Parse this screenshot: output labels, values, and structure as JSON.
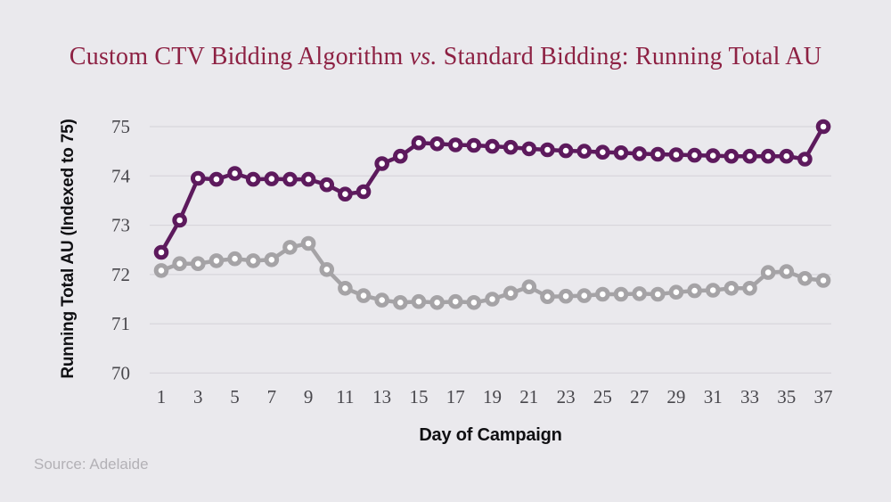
{
  "page": {
    "source_note": "Source: Adelaide",
    "colors": {
      "background": "#eae9ed",
      "gridline": "#d8d6dc",
      "title_text": "#8d2143",
      "tick_text": "#48474c",
      "axis_label_text": "#0f0f12",
      "source_text": "#b3b1b6",
      "marker_fill": "#ffffff"
    }
  },
  "title": {
    "prefix": "Custom CTV Bidding Algorithm ",
    "vs": "vs.",
    "suffix": " Standard Bidding: Running Total AU"
  },
  "chart_data": {
    "type": "line",
    "title": "Custom CTV Bidding Algorithm vs. Standard Bidding: Running Total AU",
    "xlabel": "Day of Campaign",
    "ylabel": "Running Total AU (Indexed to 75)",
    "x": [
      1,
      2,
      3,
      4,
      5,
      6,
      7,
      8,
      9,
      10,
      11,
      12,
      13,
      14,
      15,
      16,
      17,
      18,
      19,
      20,
      21,
      22,
      23,
      24,
      25,
      26,
      27,
      28,
      29,
      30,
      31,
      32,
      33,
      34,
      35,
      36,
      37
    ],
    "x_ticks": [
      1,
      3,
      5,
      7,
      9,
      11,
      13,
      15,
      17,
      19,
      21,
      23,
      25,
      27,
      29,
      31,
      33,
      35,
      37
    ],
    "y_ticks": [
      70,
      71,
      72,
      73,
      74,
      75
    ],
    "ylim": [
      70,
      75
    ],
    "xlim": [
      1,
      37
    ],
    "grid": "horizontal-only",
    "legend_position": "none",
    "marker_style": "open-circle",
    "series": [
      {
        "name": "Custom CTV Bidding Algorithm",
        "color": "#5d1a5d",
        "values": [
          72.45,
          73.1,
          73.95,
          73.93,
          74.05,
          73.93,
          73.94,
          73.93,
          73.93,
          73.82,
          73.63,
          73.68,
          74.25,
          74.4,
          74.67,
          74.65,
          74.63,
          74.62,
          74.6,
          74.58,
          74.55,
          74.53,
          74.51,
          74.5,
          74.48,
          74.47,
          74.45,
          74.44,
          74.43,
          74.42,
          74.41,
          74.4,
          74.4,
          74.4,
          74.4,
          74.34,
          75.0
        ]
      },
      {
        "name": "Standard Bidding",
        "color": "#a5a3a6",
        "values": [
          72.08,
          72.22,
          72.22,
          72.28,
          72.32,
          72.28,
          72.3,
          72.55,
          72.63,
          72.1,
          71.72,
          71.57,
          71.48,
          71.43,
          71.45,
          71.43,
          71.45,
          71.43,
          71.5,
          71.62,
          71.75,
          71.55,
          71.56,
          71.57,
          71.6,
          71.6,
          71.61,
          71.6,
          71.64,
          71.67,
          71.68,
          71.72,
          71.72,
          72.04,
          72.06,
          71.92,
          71.88
        ]
      }
    ]
  }
}
